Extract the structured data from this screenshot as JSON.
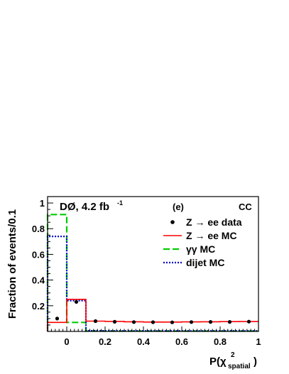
{
  "chart_data": {
    "type": "histogram",
    "experiment_label": "DØ, 4.2 fb",
    "lumi_superscript": "-1",
    "panel_label": "(e)",
    "region_label": "CC",
    "ylabel": "Fraction of events/0.1",
    "xlabel_main": "P(χ",
    "xlabel_sup": "2",
    "xlabel_sub": "spatial",
    "xlabel_close": ")",
    "xlim": [
      -0.1,
      1.0
    ],
    "ylim": [
      0,
      1.05
    ],
    "x_ticks": [
      "0",
      "0.2",
      "0.4",
      "0.6",
      "0.8",
      "1"
    ],
    "x_tick_values": [
      0,
      0.2,
      0.4,
      0.6,
      0.8,
      1.0
    ],
    "y_ticks": [
      "0.2",
      "0.4",
      "0.6",
      "0.8",
      "1"
    ],
    "y_tick_values": [
      0.2,
      0.4,
      0.6,
      0.8,
      1.0
    ],
    "bin_edges": [
      -0.1,
      0.0,
      0.1,
      0.2,
      0.3,
      0.4,
      0.5,
      0.6,
      0.7,
      0.8,
      0.9,
      1.0
    ],
    "series": [
      {
        "name": "Z → ee data",
        "style": "points",
        "color": "#000000",
        "x": [
          -0.05,
          0.05,
          0.15,
          0.25,
          0.35,
          0.45,
          0.55,
          0.65,
          0.75,
          0.85,
          0.95
        ],
        "values": [
          0.1,
          0.23,
          0.08,
          0.075,
          0.073,
          0.072,
          0.071,
          0.073,
          0.074,
          0.074,
          0.076
        ]
      },
      {
        "name": "Z → ee MC",
        "style": "solid",
        "color": "#ff0000",
        "values": [
          0.07,
          0.25,
          0.08,
          0.078,
          0.075,
          0.073,
          0.073,
          0.074,
          0.075,
          0.076,
          0.077
        ]
      },
      {
        "name": "γγ MC",
        "style": "dashed",
        "color": "#00cc00",
        "values": [
          0.91,
          0.07,
          0.003,
          0.003,
          0.003,
          0.003,
          0.003,
          0.003,
          0.003,
          0.003,
          0.003
        ]
      },
      {
        "name": "dijet MC",
        "style": "dotted",
        "color": "#0000cc",
        "values": [
          0.74,
          0.24,
          0.005,
          0.004,
          0.004,
          0.004,
          0.004,
          0.004,
          0.004,
          0.004,
          0.004
        ]
      }
    ],
    "legend_position": "top-right"
  }
}
